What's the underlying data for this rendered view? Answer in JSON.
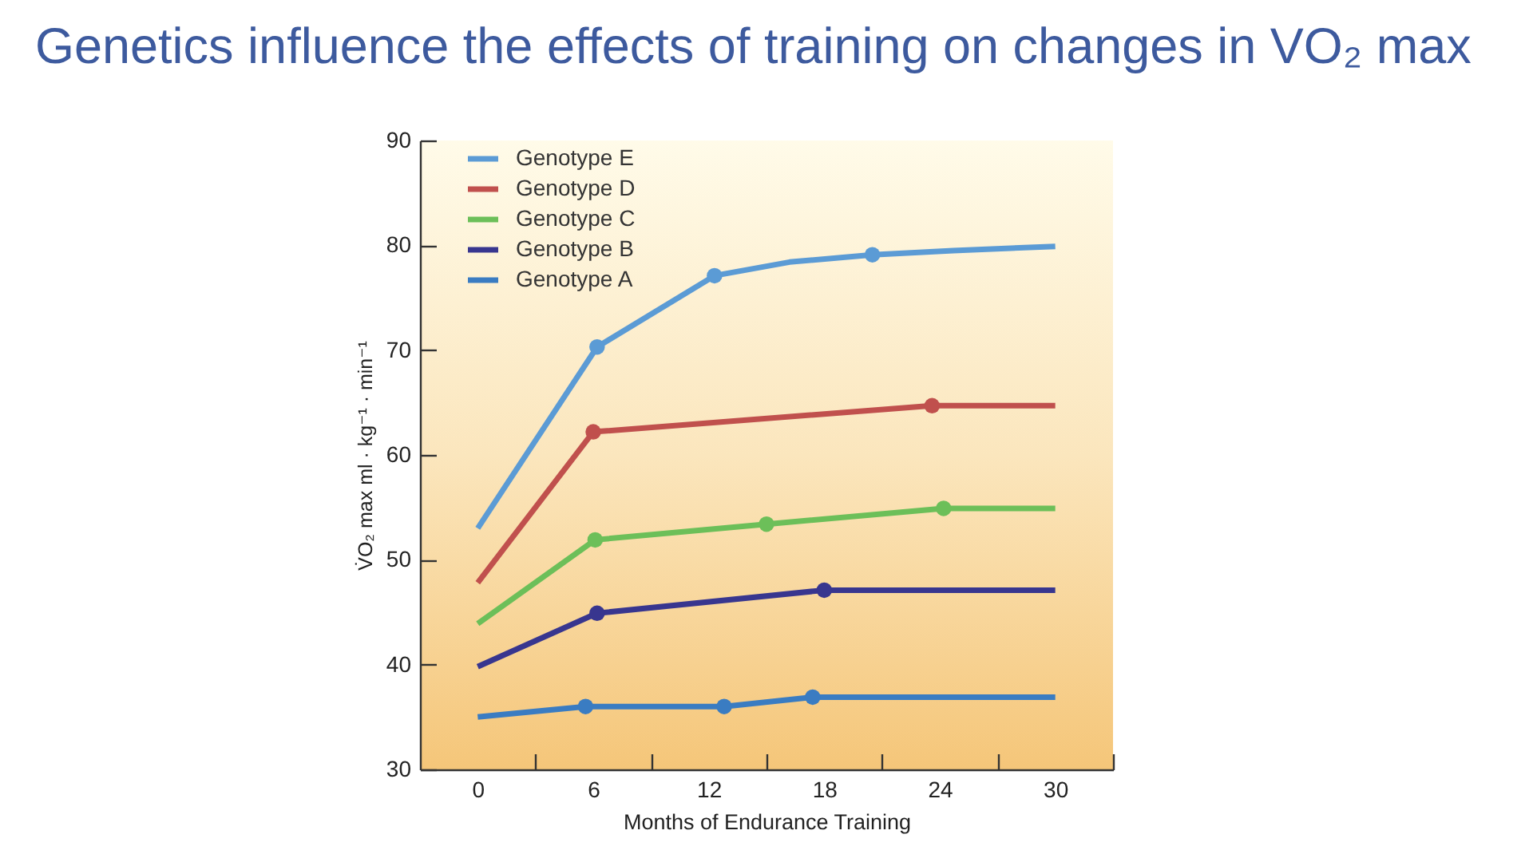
{
  "chart_data": {
    "type": "line",
    "title": "Genetics influence the effects of training on changes in VO₂ max",
    "xlabel": "Months of Endurance Training",
    "ylabel": "V̇O₂ max ml · kg⁻¹ · min⁻¹",
    "xlim": [
      -3,
      33
    ],
    "xticks": [
      0,
      {
        "value": 3,
        "label": null
      },
      6,
      {
        "value": 9,
        "label": null
      },
      12,
      {
        "value": 15,
        "label": null
      },
      18,
      {
        "value": 21,
        "label": null
      },
      24,
      {
        "value": 27,
        "label": null
      },
      30,
      {
        "value": 33,
        "label": null
      }
    ],
    "ylim": [
      30,
      90
    ],
    "yticks": [
      30,
      40,
      50,
      60,
      70,
      80,
      90
    ],
    "legend": "top left",
    "line_style": "solid",
    "series": [
      {
        "name": "Genotype E",
        "color": "#5b9bd5",
        "x": [
          0,
          6.2,
          12.3,
          16.2,
          20.5,
          24.7,
          30
        ],
        "values": [
          53,
          70.3,
          77.1,
          78.4,
          79.1,
          79.5,
          79.9
        ]
      },
      {
        "name": "Genotype D",
        "color": "#c0504d",
        "x": [
          0,
          6,
          23.6,
          30
        ],
        "values": [
          47.8,
          62.2,
          64.7,
          64.7
        ]
      },
      {
        "name": "Genotype C",
        "color": "#6cbf59",
        "x": [
          0,
          6.1,
          15,
          24.2,
          30
        ],
        "values": [
          43.9,
          51.9,
          53.4,
          54.9,
          54.9
        ]
      },
      {
        "name": "Genotype B",
        "color": "#38368f",
        "x": [
          0,
          6.2,
          18,
          30
        ],
        "values": [
          39.8,
          44.9,
          47.1,
          47.1
        ]
      },
      {
        "name": "Genotype A",
        "color": "#3a7cc2",
        "x": [
          0,
          5.6,
          12.8,
          17.4,
          30
        ],
        "values": [
          35,
          36,
          36,
          36.9,
          36.9
        ]
      },
      {
        "type": "scatter",
        "color": "#5b9bd5",
        "marker": "circle",
        "x": [
          6.2,
          12.3,
          20.5
        ],
        "values": [
          70.3,
          77.1,
          79.1
        ]
      },
      {
        "type": "scatter",
        "color": "#c0504d",
        "marker": "circle",
        "x": [
          6,
          23.6
        ],
        "values": [
          62.2,
          64.7
        ]
      },
      {
        "type": "scatter",
        "color": "#6cbf59",
        "marker": "circle",
        "x": [
          6.1,
          15,
          24.2
        ],
        "values": [
          51.9,
          53.4,
          54.9
        ]
      },
      {
        "type": "scatter",
        "color": "#38368f",
        "marker": "circle",
        "x": [
          6.2,
          18
        ],
        "values": [
          44.9,
          47.1
        ]
      },
      {
        "type": "scatter",
        "color": "#3a7cc2",
        "marker": "circle",
        "x": [
          5.6,
          12.8,
          17.4
        ],
        "values": [
          36,
          36,
          36.9
        ]
      }
    ]
  }
}
